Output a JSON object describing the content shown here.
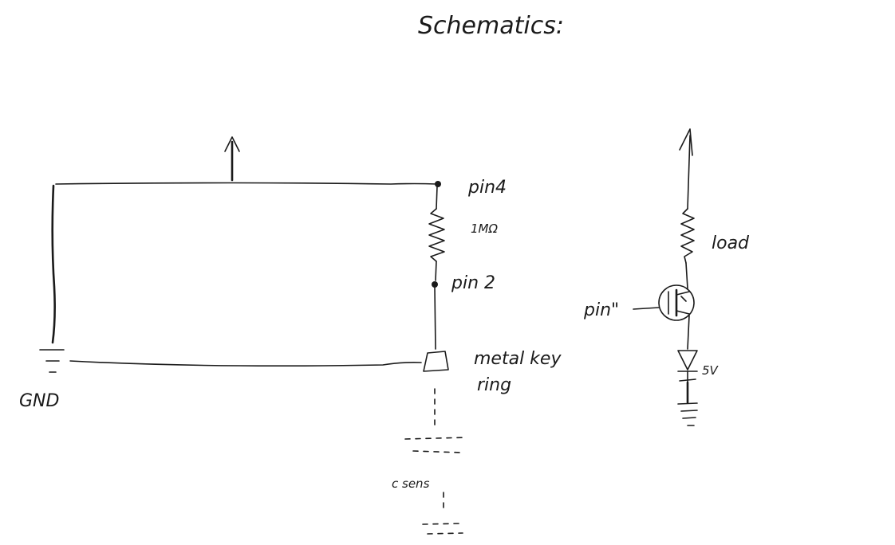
{
  "title": "Schematics:",
  "circuit_left": {
    "ground_label": "GND",
    "pin_top_label": "pin4",
    "resistor_label": "1MΩ",
    "pin_mid_label": "pin 2",
    "sensor_label_line1": "metal key",
    "sensor_label_line2": "ring",
    "capacitance_label": "c sens"
  },
  "circuit_right": {
    "load_label": "load",
    "gate_label": "pin\"",
    "diode_label": "5V"
  }
}
